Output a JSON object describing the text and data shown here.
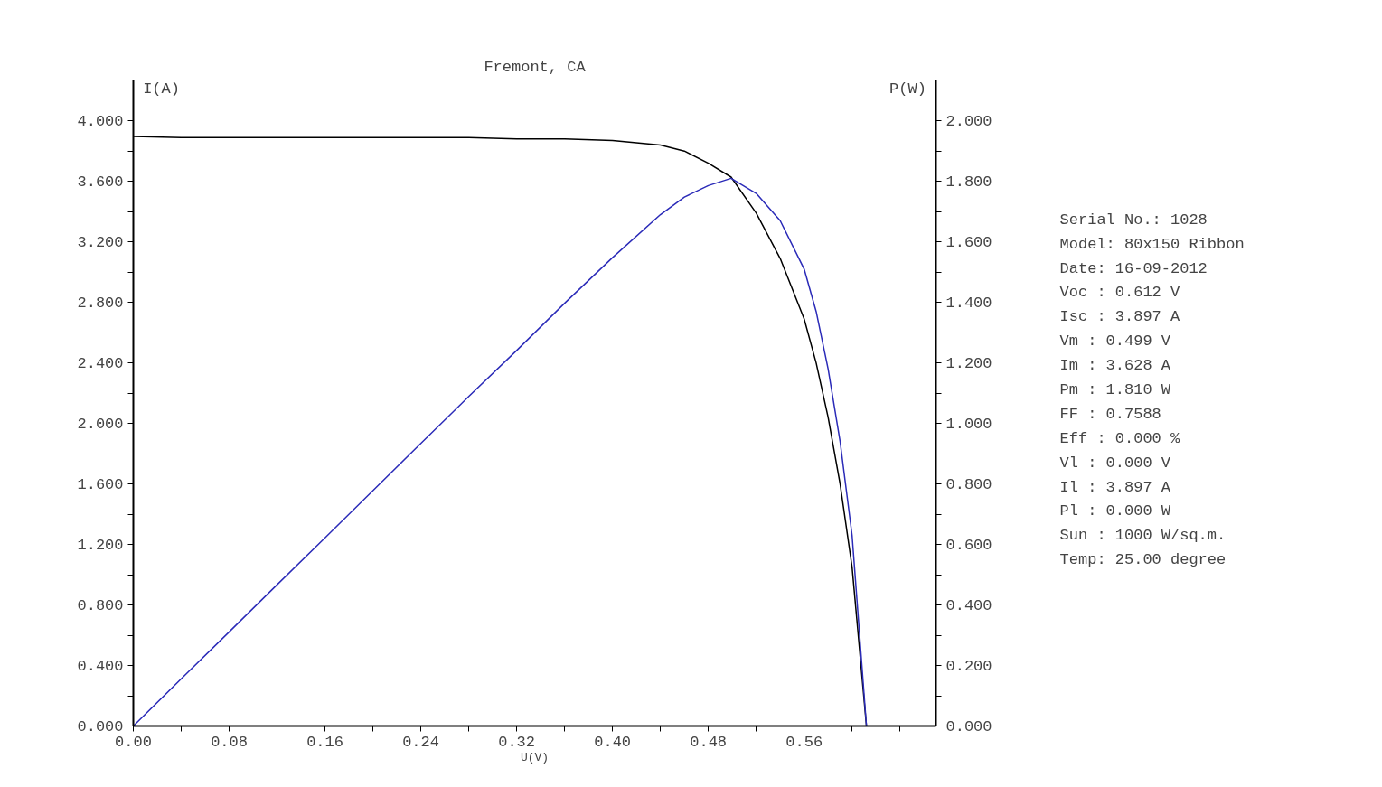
{
  "chart_data": {
    "type": "line",
    "title": "Fremont, CA",
    "xlabel": "U(V)",
    "ylabel": "I(A)",
    "y2label": "P(W)",
    "x": [
      0,
      0.04,
      0.08,
      0.12,
      0.16,
      0.2,
      0.24,
      0.28,
      0.32,
      0.36,
      0.4,
      0.44,
      0.46,
      0.48,
      0.499,
      0.52,
      0.54,
      0.56,
      0.57,
      0.58,
      0.59,
      0.6,
      0.612
    ],
    "series": [
      {
        "color": "#000000",
        "values": [
          3.897,
          3.89,
          3.89,
          3.89,
          3.89,
          3.89,
          3.89,
          3.89,
          3.88,
          3.88,
          3.87,
          3.84,
          3.8,
          3.72,
          3.628,
          3.39,
          3.09,
          2.69,
          2.4,
          2.04,
          1.6,
          1.05,
          0
        ]
      },
      {
        "color": "#2b2bb8",
        "axis": "y2",
        "values": [
          0,
          0.156,
          0.311,
          0.467,
          0.622,
          0.778,
          0.934,
          1.089,
          1.241,
          1.397,
          1.548,
          1.69,
          1.748,
          1.786,
          1.81,
          1.76,
          1.67,
          1.51,
          1.37,
          1.18,
          0.94,
          0.63,
          0
        ]
      }
    ],
    "xlim": [
      0,
      0.67
    ],
    "ylim": [
      0,
      4.27
    ],
    "y2lim": [
      0,
      2.135
    ],
    "xticks": [
      {
        "value": 0,
        "label": "0.00"
      },
      {
        "value": 0.04,
        "label": null
      },
      {
        "value": 0.08,
        "label": "0.08"
      },
      {
        "value": 0.12,
        "label": null
      },
      {
        "value": 0.16,
        "label": "0.16"
      },
      {
        "value": 0.2,
        "label": null
      },
      {
        "value": 0.24,
        "label": "0.24"
      },
      {
        "value": 0.28,
        "label": null
      },
      {
        "value": 0.32,
        "label": "0.32"
      },
      {
        "value": 0.36,
        "label": null
      },
      {
        "value": 0.4,
        "label": "0.40"
      },
      {
        "value": 0.44,
        "label": null
      },
      {
        "value": 0.48,
        "label": "0.48"
      },
      {
        "value": 0.52,
        "label": null
      },
      {
        "value": 0.56,
        "label": "0.56"
      },
      {
        "value": 0.6,
        "label": null
      },
      {
        "value": 0.64,
        "label": null
      }
    ],
    "yticks": [
      {
        "value": 0,
        "label": "0.000"
      },
      {
        "value": 0.2,
        "label": null
      },
      {
        "value": 0.4,
        "label": "0.400"
      },
      {
        "value": 0.6,
        "label": null
      },
      {
        "value": 0.8,
        "label": "0.800"
      },
      {
        "value": 1.0,
        "label": null
      },
      {
        "value": 1.2,
        "label": "1.200"
      },
      {
        "value": 1.4,
        "label": null
      },
      {
        "value": 1.6,
        "label": "1.600"
      },
      {
        "value": 1.8,
        "label": null
      },
      {
        "value": 2.0,
        "label": "2.000"
      },
      {
        "value": 2.2,
        "label": null
      },
      {
        "value": 2.4,
        "label": "2.400"
      },
      {
        "value": 2.6,
        "label": null
      },
      {
        "value": 2.8,
        "label": "2.800"
      },
      {
        "value": 3.0,
        "label": null
      },
      {
        "value": 3.2,
        "label": "3.200"
      },
      {
        "value": 3.4,
        "label": null
      },
      {
        "value": 3.6,
        "label": "3.600"
      },
      {
        "value": 3.8,
        "label": null
      },
      {
        "value": 4.0,
        "label": "4.000"
      }
    ],
    "y2ticks": [
      {
        "value": 0,
        "label": "0.000"
      },
      {
        "value": 0.1,
        "label": null
      },
      {
        "value": 0.2,
        "label": "0.200"
      },
      {
        "value": 0.3,
        "label": null
      },
      {
        "value": 0.4,
        "label": "0.400"
      },
      {
        "value": 0.5,
        "label": null
      },
      {
        "value": 0.6,
        "label": "0.600"
      },
      {
        "value": 0.7,
        "label": null
      },
      {
        "value": 0.8,
        "label": "0.800"
      },
      {
        "value": 0.9,
        "label": null
      },
      {
        "value": 1.0,
        "label": "1.000"
      },
      {
        "value": 1.1,
        "label": null
      },
      {
        "value": 1.2,
        "label": "1.200"
      },
      {
        "value": 1.3,
        "label": null
      },
      {
        "value": 1.4,
        "label": "1.400"
      },
      {
        "value": 1.5,
        "label": null
      },
      {
        "value": 1.6,
        "label": "1.600"
      },
      {
        "value": 1.7,
        "label": null
      },
      {
        "value": 1.8,
        "label": "1.800"
      },
      {
        "value": 1.9,
        "label": null
      },
      {
        "value": 2.0,
        "label": "2.000"
      }
    ],
    "annotations": [
      "Serial No.: 1028",
      "Model: 80x150 Ribbon",
      "Date: 16-09-2012",
      "Voc : 0.612 V",
      "Isc : 3.897 A",
      "Vm  : 0.499 V",
      "Im  : 3.628 A",
      "Pm  : 1.810 W",
      "FF  : 0.7588",
      "Eff : 0.000 %",
      "Vl  : 0.000 V",
      "Il  : 3.897 A",
      "Pl  : 0.000 W",
      "Sun : 1000 W/sq.m.",
      "Temp: 25.00 degree"
    ]
  }
}
